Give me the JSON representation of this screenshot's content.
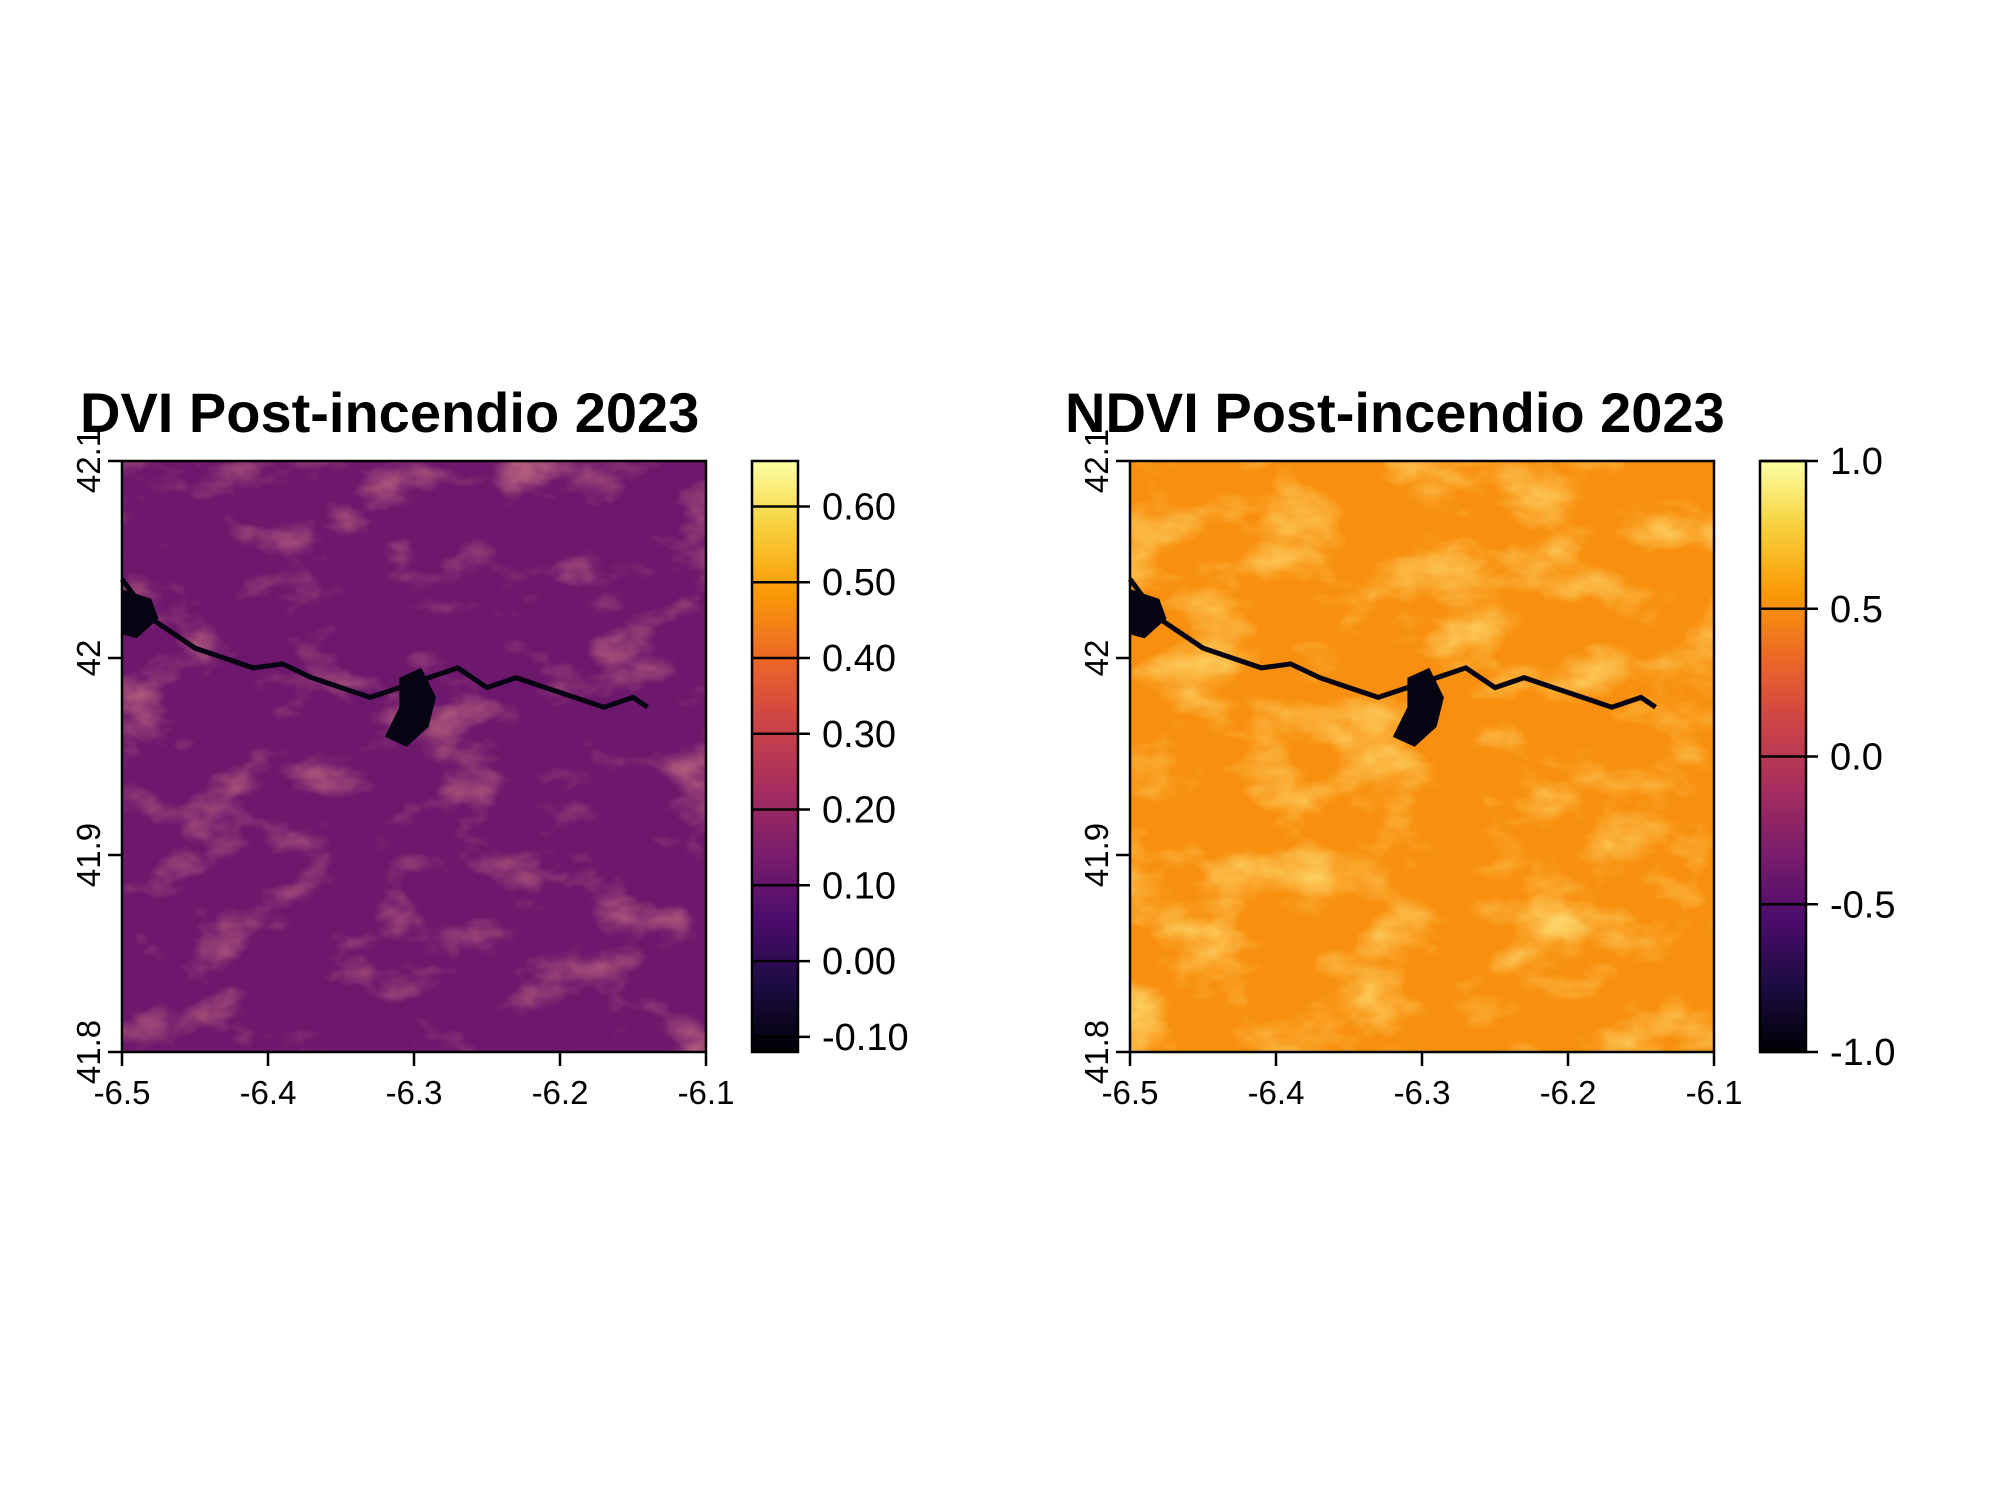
{
  "chart_data": [
    {
      "type": "heatmap",
      "title": "DVI Post-incendio 2023",
      "xlabel": "",
      "ylabel": "",
      "xlim": [
        -6.5,
        -6.1
      ],
      "ylim": [
        41.8,
        42.1
      ],
      "x_ticks": [
        "-6.5",
        "-6.4",
        "-6.3",
        "-6.2",
        "-6.1"
      ],
      "y_ticks": [
        "41.8",
        "41.9",
        "42",
        "42.1"
      ],
      "colorscale": "inferno",
      "legend": {
        "position": "right",
        "range": [
          -0.12,
          0.66
        ],
        "ticks": [
          -0.1,
          0.0,
          0.1,
          0.2,
          0.3,
          0.4,
          0.5,
          0.6
        ],
        "tick_labels": [
          "-0.10",
          "0.00",
          "0.10",
          "0.20",
          "0.30",
          "0.40",
          "0.50",
          "0.60"
        ]
      },
      "value_profile": {
        "background": 0.12,
        "brighter_areas": 0.3,
        "water_bodies": -0.1
      }
    },
    {
      "type": "heatmap",
      "title": "NDVI Post-incendio 2023",
      "xlabel": "",
      "ylabel": "",
      "xlim": [
        -6.5,
        -6.1
      ],
      "ylim": [
        41.8,
        42.1
      ],
      "x_ticks": [
        "-6.5",
        "-6.4",
        "-6.3",
        "-6.2",
        "-6.1"
      ],
      "y_ticks": [
        "41.8",
        "41.9",
        "42",
        "42.1"
      ],
      "colorscale": "inferno",
      "legend": {
        "position": "right",
        "range": [
          -1.0,
          1.0
        ],
        "ticks": [
          -1.0,
          -0.5,
          0.0,
          0.5,
          1.0
        ],
        "tick_labels": [
          "-1.0",
          "-0.5",
          "0.0",
          "0.5",
          "1.0"
        ]
      },
      "value_profile": {
        "background": 0.5,
        "brighter_areas": 0.75,
        "water_bodies": -0.95
      }
    }
  ],
  "colors": {
    "inferno": [
      "#000004",
      "#1b0c41",
      "#4a0c6b",
      "#781c6d",
      "#a52c60",
      "#cf4446",
      "#ed6925",
      "#fb9b06",
      "#f7d13d",
      "#fcffa4"
    ]
  }
}
